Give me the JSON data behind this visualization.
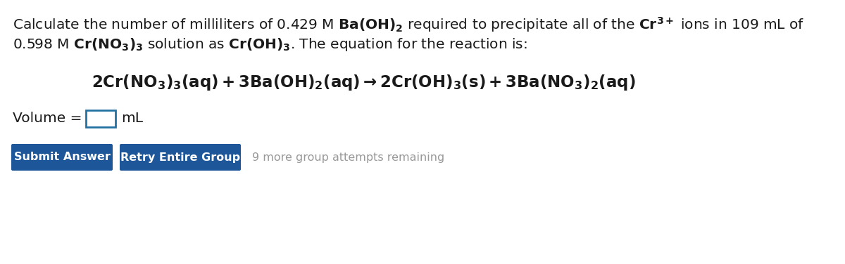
{
  "bg_color": "#ffffff",
  "text_color": "#1a1a1a",
  "button_color": "#1e5799",
  "button_text_color": "#ffffff",
  "gray_text_color": "#999999",
  "volume_label": "Volume = ",
  "volume_unit": "mL",
  "btn1_text": "Submit Answer",
  "btn2_text": "Retry Entire Group",
  "attempts_text": "9 more group attempts remaining",
  "figsize": [
    12.0,
    3.76
  ],
  "dpi": 100
}
